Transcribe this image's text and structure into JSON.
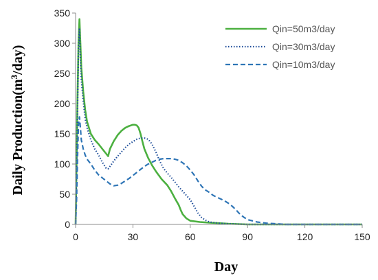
{
  "chart_data": {
    "type": "line",
    "title": "",
    "xlabel": "Day",
    "ylabel_prefix": "Daily Production(m",
    "ylabel_sup": "3",
    "ylabel_suffix": "/day)",
    "xlim": [
      0,
      150
    ],
    "ylim": [
      0,
      350
    ],
    "xticks": [
      0,
      30,
      60,
      90,
      120,
      150
    ],
    "yticks": [
      0,
      50,
      100,
      150,
      200,
      250,
      300,
      350
    ],
    "grid": false,
    "legend_position": "top-right",
    "series": [
      {
        "name": "Qin=50m3/day",
        "color": "#4cb040",
        "style": "solid",
        "x": [
          0,
          0.5,
          1,
          1.5,
          2,
          2.5,
          3,
          4,
          5,
          6,
          8,
          10,
          12,
          14,
          16,
          17,
          18,
          20,
          22,
          24,
          26,
          28,
          30,
          31,
          32,
          33,
          34,
          35,
          36,
          38,
          40,
          42,
          45,
          48,
          50,
          52,
          54,
          55,
          56,
          58,
          60,
          65,
          70,
          75,
          80,
          90,
          100,
          120,
          150
        ],
        "y": [
          0,
          100,
          210,
          300,
          340,
          300,
          260,
          220,
          190,
          170,
          150,
          140,
          133,
          125,
          117,
          113,
          125,
          138,
          148,
          155,
          160,
          163,
          165,
          165,
          164,
          160,
          150,
          137,
          125,
          110,
          98,
          88,
          75,
          65,
          55,
          43,
          32,
          24,
          17,
          10,
          6,
          4,
          3,
          2,
          1,
          0,
          0,
          0,
          0
        ]
      },
      {
        "name": "Qin=30m3/day",
        "color": "#1f4e9a",
        "style": "dotted",
        "x": [
          0,
          0.5,
          1,
          1.5,
          2,
          2.5,
          3,
          4,
          5,
          6,
          8,
          10,
          12,
          14,
          16,
          17,
          18,
          20,
          22,
          24,
          26,
          28,
          30,
          32,
          34,
          36,
          38,
          40,
          42,
          44,
          46,
          48,
          50,
          52,
          54,
          56,
          58,
          60,
          62,
          64,
          66,
          68,
          70,
          75,
          80,
          90,
          100,
          110,
          120,
          150
        ],
        "y": [
          0,
          80,
          190,
          290,
          325,
          275,
          240,
          205,
          175,
          160,
          140,
          125,
          115,
          103,
          93,
          92,
          96,
          105,
          113,
          120,
          127,
          133,
          137,
          141,
          143,
          143,
          141,
          133,
          120,
          105,
          93,
          85,
          78,
          70,
          62,
          55,
          48,
          41,
          30,
          19,
          11,
          7,
          4,
          2,
          1,
          0,
          0,
          0,
          0,
          0
        ]
      },
      {
        "name": "Qin=10m3/day",
        "color": "#2e75b6",
        "style": "dashed",
        "x": [
          0,
          0.5,
          1,
          1.5,
          2,
          2.5,
          3,
          4,
          5,
          6,
          8,
          10,
          12,
          14,
          16,
          18,
          20,
          22,
          24,
          26,
          28,
          30,
          32,
          34,
          36,
          38,
          40,
          42,
          44,
          46,
          48,
          50,
          52,
          54,
          56,
          58,
          60,
          62,
          64,
          66,
          68,
          70,
          72,
          74,
          76,
          78,
          80,
          82,
          84,
          86,
          88,
          90,
          95,
          100,
          105,
          110,
          120,
          150
        ],
        "y": [
          0,
          40,
          110,
          165,
          178,
          160,
          140,
          125,
          115,
          108,
          100,
          90,
          82,
          77,
          72,
          67,
          64,
          65,
          68,
          72,
          76,
          81,
          86,
          91,
          96,
          100,
          103,
          106,
          108,
          109,
          109,
          109,
          108,
          106,
          102,
          97,
          90,
          82,
          72,
          63,
          57,
          53,
          48,
          45,
          42,
          39,
          35,
          30,
          24,
          17,
          12,
          8,
          4,
          2,
          1,
          0,
          0,
          0
        ]
      }
    ]
  }
}
